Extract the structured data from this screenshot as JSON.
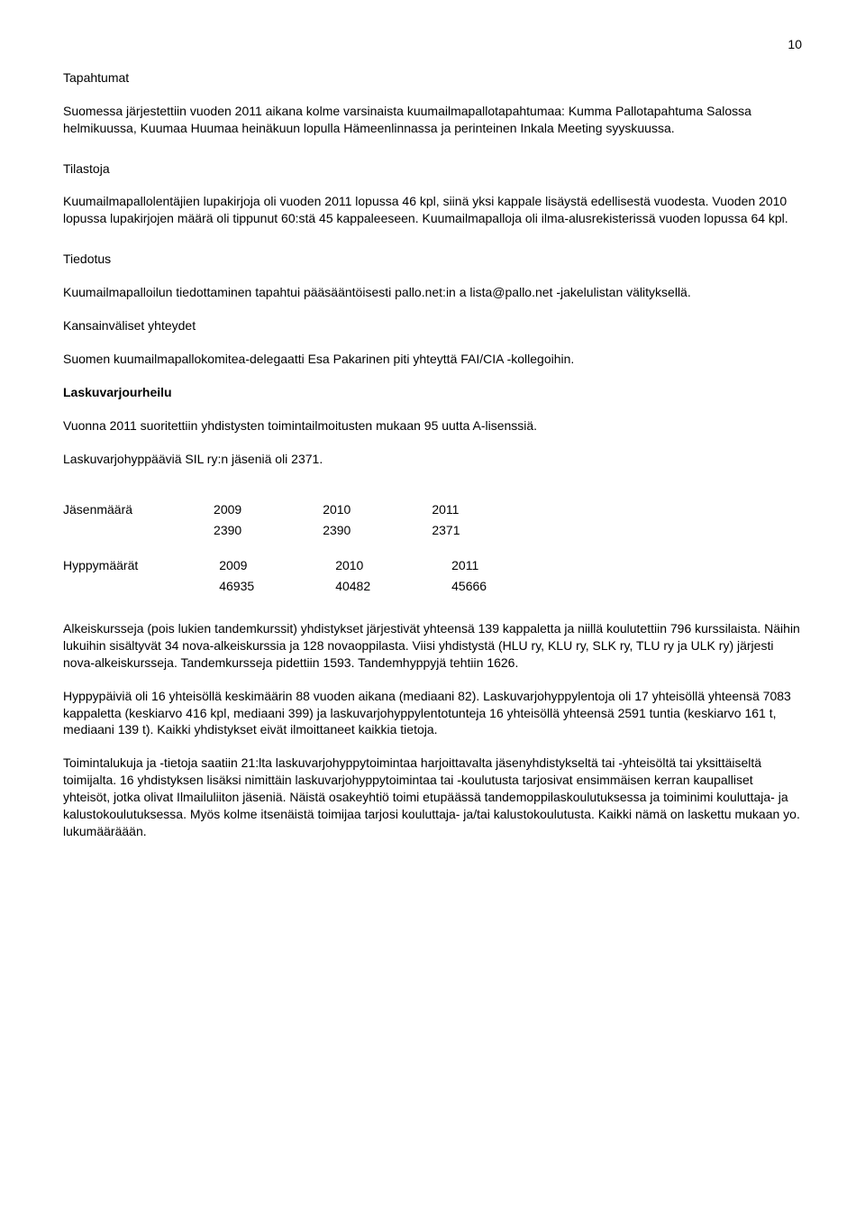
{
  "page_number": "10",
  "sections": {
    "tapahtumat_title": "Tapahtumat",
    "tapahtumat_para": "Suomessa järjestettiin vuoden 2011 aikana kolme varsinaista kuumailmapallotapahtumaa: Kumma Pallotapahtuma Salossa helmikuussa, Kuumaa Huumaa heinäkuun lopulla Hämeenlinnassa ja perinteinen Inkala Meeting syyskuussa.",
    "tilastoja_title": "Tilastoja",
    "tilastoja_para": "Kuumailmapallolentäjien lupakirjoja oli vuoden 2011 lopussa 46 kpl, siinä yksi kappale lisäystä edellisestä vuodesta. Vuoden 2010 lopussa lupakirjojen määrä oli tippunut 60:stä 45 kappaleeseen. Kuumailmapalloja oli ilma-alusrekisterissä vuoden lopussa 64 kpl.",
    "tiedotus_title": "Tiedotus",
    "tiedotus_para": "Kuumailmapalloilun tiedottaminen tapahtui pääsääntöisesti pallo.net:in a lista@pallo.net -jakelulistan välityksellä.",
    "kansainvaliset_title": "Kansainväliset yhteydet",
    "kansainvaliset_para": "Suomen kuumailmapallokomitea-delegaatti Esa Pakarinen piti yhteyttä FAI/CIA -kollegoihin.",
    "laskuvarjo_title": "Laskuvarjourheilu",
    "laskuvarjo_para1": "Vuonna 2011 suoritettiin yhdistysten toimintailmoitusten mukaan 95 uutta A-lisenssiä.",
    "laskuvarjo_para2": "Laskuvarjohyppääviä SIL ry:n jäseniä oli 2371.",
    "table1": {
      "label": "Jäsenmäärä",
      "headers": [
        "2009",
        "2010",
        "2011"
      ],
      "values": [
        "2390",
        "2390",
        "2371"
      ]
    },
    "table2": {
      "label": "Hyppymäärät",
      "headers": [
        "2009",
        "2010",
        "2011"
      ],
      "values": [
        "46935",
        "40482",
        "45666"
      ]
    },
    "para_a": "Alkeiskursseja (pois lukien tandemkurssit) yhdistykset järjestivät yhteensä 139 kappaletta ja niillä koulutettiin 796 kurssilaista. Näihin lukuihin sisältyvät 34 nova-alkeiskurssia ja 128 novaoppilasta. Viisi yhdistystä (HLU ry, KLU ry, SLK ry, TLU ry ja ULK ry) järjesti nova-alkeiskursseja. Tandemkursseja pidettiin 1593. Tandemhyppyjä tehtiin 1626.",
    "para_b": "Hyppypäiviä oli 16 yhteisöllä keskimäärin 88 vuoden aikana (mediaani 82). Laskuvarjohyppylentoja oli 17 yhteisöllä yhteensä 7083 kappaletta (keskiarvo 416 kpl, mediaani 399) ja laskuvarjohyppylentotunteja 16 yhteisöllä yhteensä 2591 tuntia (keskiarvo 161 t, mediaani 139 t). Kaikki yhdistykset eivät ilmoittaneet kaikkia tietoja.",
    "para_c": "Toimintalukuja ja -tietoja saatiin 21:lta laskuvarjohyppytoimintaa harjoittavalta jäsenyhdistykseltä tai -yhteisöltä tai yksittäiseltä toimijalta. 16 yhdistyksen lisäksi nimittäin laskuvarjohyppytoimintaa tai -koulutusta tarjosivat ensimmäisen kerran kaupalliset yhteisöt, jotka olivat Ilmailuliiton jäseniä. Näistä osakeyhtiö toimi etupäässä tandemoppilaskoulutuksessa ja toiminimi kouluttaja- ja kalustokoulutuksessa. Myös kolme itsenäistä toimijaa tarjosi kouluttaja- ja/tai kalustokoulutusta. Kaikki nämä on laskettu mukaan yo. lukumääräään."
  }
}
